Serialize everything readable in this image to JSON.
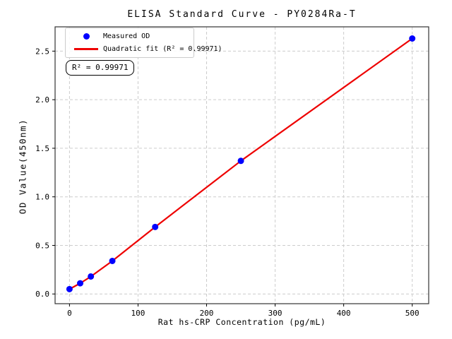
{
  "chart_data": {
    "type": "scatter",
    "title": "ELISA Standard Curve - PY0284Ra-T",
    "xlabel": "Rat hs-CRP Concentration (pg/mL)",
    "ylabel": "OD Value(450nm)",
    "xlim": [
      -21,
      524
    ],
    "ylim": [
      -0.1,
      2.75
    ],
    "xticks": {
      "values": [
        0,
        100,
        200,
        300,
        400,
        500
      ],
      "labels": [
        "0",
        "100",
        "200",
        "300",
        "400",
        "500"
      ]
    },
    "yticks": {
      "values": [
        0.0,
        0.5,
        1.0,
        1.5,
        2.0,
        2.5
      ],
      "labels": [
        "0.0",
        "0.5",
        "1.0",
        "1.5",
        "2.0",
        "2.5"
      ]
    },
    "grid": true,
    "grid_color": "#cccccc",
    "spine_color": "#333333",
    "legend": {
      "position": "upper left",
      "items": [
        {
          "label": "Measured OD",
          "marker": "circle",
          "color": "#0000ff"
        },
        {
          "label": "Quadratic fit (R² = 0.99971)",
          "marker": "line",
          "color": "#ee0000"
        }
      ]
    },
    "annotation": {
      "text": "R² = 0.99971"
    },
    "series": [
      {
        "name": "Measured OD",
        "type": "scatter",
        "color": "#0000ff",
        "marker_radius": 4.5,
        "x": [
          0,
          15.6,
          31.2,
          62.5,
          125,
          250,
          500
        ],
        "y": [
          0.05,
          0.11,
          0.18,
          0.34,
          0.69,
          1.37,
          2.63
        ]
      },
      {
        "name": "Quadratic fit",
        "type": "line",
        "color": "#ee0000",
        "line_width": 2.2,
        "x": [
          0,
          15.6,
          31.2,
          62.5,
          125,
          250,
          500
        ],
        "y": [
          0.05,
          0.11,
          0.18,
          0.34,
          0.69,
          1.37,
          2.63
        ]
      }
    ]
  }
}
